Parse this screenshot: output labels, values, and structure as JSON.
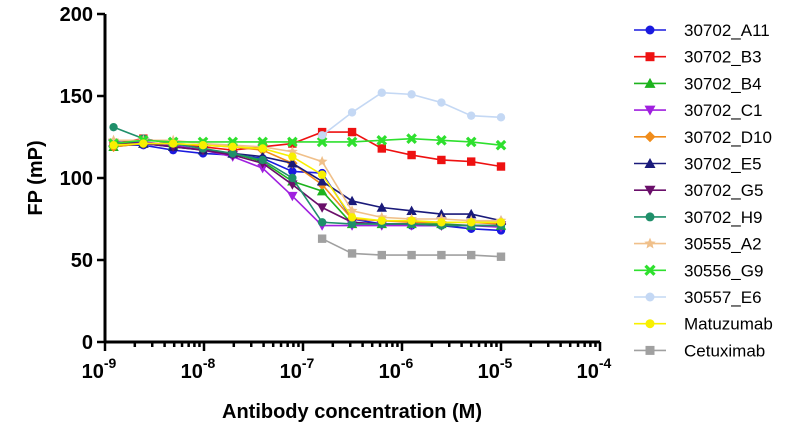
{
  "chart_data": {
    "type": "line",
    "xscale": "log",
    "xlabel": "Antibody concentration (M)",
    "ylabel": "FP (mP)",
    "xlim": [
      1e-09,
      0.0001
    ],
    "ylim": [
      0,
      200
    ],
    "yticks": [
      0,
      50,
      100,
      150,
      200
    ],
    "xticks": [
      {
        "value": 1e-09,
        "base": "10",
        "exp": "-9"
      },
      {
        "value": 1e-08,
        "base": "10",
        "exp": "-8"
      },
      {
        "value": 1e-07,
        "base": "10",
        "exp": "-7"
      },
      {
        "value": 1e-06,
        "base": "10",
        "exp": "-6"
      },
      {
        "value": 1e-05,
        "base": "10",
        "exp": "-5"
      },
      {
        "value": 0.0001,
        "base": "10",
        "exp": "-4"
      }
    ],
    "legend_position": "right",
    "series": [
      {
        "name": "30702_A11",
        "color": "#1a1adf",
        "marker": "circle",
        "x": [
          1.22e-09,
          2.44e-09,
          4.88e-09,
          9.77e-09,
          1.95e-08,
          3.91e-08,
          7.81e-08,
          1.56e-07,
          3.13e-07,
          6.25e-07,
          1.25e-06,
          2.5e-06,
          5e-06,
          1e-05
        ],
        "y": [
          120,
          120,
          117,
          115,
          114,
          112,
          104,
          103,
          75,
          72,
          71,
          71,
          69,
          68
        ]
      },
      {
        "name": "30702_B3",
        "color": "#ee1111",
        "marker": "square",
        "x": [
          1.22e-09,
          2.44e-09,
          4.88e-09,
          9.77e-09,
          1.95e-08,
          3.91e-08,
          7.81e-08,
          1.56e-07,
          3.13e-07,
          6.25e-07,
          1.25e-06,
          2.5e-06,
          5e-06,
          1e-05
        ],
        "y": [
          121,
          124,
          121,
          119,
          117,
          119,
          121,
          128,
          128,
          118,
          114,
          111,
          110,
          107
        ]
      },
      {
        "name": "30702_B4",
        "color": "#1db31d",
        "marker": "triangle-up",
        "x": [
          1.22e-09,
          2.44e-09,
          4.88e-09,
          9.77e-09,
          1.95e-08,
          3.91e-08,
          7.81e-08,
          1.56e-07,
          3.13e-07,
          6.25e-07,
          1.25e-06,
          2.5e-06,
          5e-06,
          1e-05
        ],
        "y": [
          119,
          121,
          120,
          117,
          115,
          110,
          98,
          92,
          72,
          72,
          72,
          72,
          71,
          71
        ]
      },
      {
        "name": "30702_C1",
        "color": "#a020df",
        "marker": "triangle-down",
        "x": [
          1.22e-09,
          2.44e-09,
          4.88e-09,
          9.77e-09,
          1.95e-08,
          3.91e-08,
          7.81e-08,
          1.56e-07,
          3.13e-07,
          6.25e-07,
          1.25e-06,
          2.5e-06,
          5e-06,
          1e-05
        ],
        "y": [
          121,
          122,
          120,
          117,
          113,
          106,
          89,
          71,
          71,
          71,
          71,
          71,
          71,
          70
        ]
      },
      {
        "name": "30702_D10",
        "color": "#f08c1a",
        "marker": "diamond",
        "x": [
          1.22e-09,
          2.44e-09,
          4.88e-09,
          9.77e-09,
          1.95e-08,
          3.91e-08,
          7.81e-08,
          1.56e-07,
          3.13e-07,
          6.25e-07,
          1.25e-06,
          2.5e-06,
          5e-06,
          1e-05
        ],
        "y": [
          119,
          121,
          121,
          120,
          119,
          117,
          109,
          96,
          75,
          74,
          73,
          73,
          73,
          72
        ]
      },
      {
        "name": "30702_E5",
        "color": "#1a1a7a",
        "marker": "triangle-up",
        "x": [
          1.22e-09,
          2.44e-09,
          4.88e-09,
          9.77e-09,
          1.95e-08,
          3.91e-08,
          7.81e-08,
          1.56e-07,
          3.13e-07,
          6.25e-07,
          1.25e-06,
          2.5e-06,
          5e-06,
          1e-05
        ],
        "y": [
          122,
          121,
          119,
          117,
          115,
          113,
          109,
          98,
          86,
          82,
          80,
          78,
          78,
          74
        ]
      },
      {
        "name": "30702_G5",
        "color": "#6a0f6a",
        "marker": "triangle-down",
        "x": [
          1.22e-09,
          2.44e-09,
          4.88e-09,
          9.77e-09,
          1.95e-08,
          3.91e-08,
          7.81e-08,
          1.56e-07,
          3.13e-07,
          6.25e-07,
          1.25e-06,
          2.5e-06,
          5e-06,
          1e-05
        ],
        "y": [
          121,
          121,
          119,
          117,
          114,
          109,
          96,
          82,
          73,
          72,
          72,
          71,
          71,
          71
        ]
      },
      {
        "name": "30702_H9",
        "color": "#1f8f6a",
        "marker": "circle",
        "x": [
          1.22e-09,
          2.44e-09,
          4.88e-09,
          9.77e-09,
          1.95e-08,
          3.91e-08,
          7.81e-08,
          1.56e-07,
          3.13e-07,
          6.25e-07,
          1.25e-06,
          2.5e-06,
          5e-06,
          1e-05
        ],
        "y": [
          131,
          124,
          121,
          118,
          115,
          111,
          100,
          73,
          72,
          72,
          72,
          71,
          71,
          71
        ]
      },
      {
        "name": "30555_A2",
        "color": "#f0c08a",
        "marker": "star",
        "x": [
          1.22e-09,
          2.44e-09,
          4.88e-09,
          9.77e-09,
          1.95e-08,
          3.91e-08,
          7.81e-08,
          1.56e-07,
          3.13e-07,
          6.25e-07,
          1.25e-06,
          2.5e-06,
          5e-06,
          1e-05
        ],
        "y": [
          123,
          123,
          123,
          121,
          120,
          119,
          116,
          110,
          80,
          76,
          75,
          75,
          74,
          74
        ]
      },
      {
        "name": "30556_G9",
        "color": "#2ee02e",
        "marker": "x",
        "x": [
          1.22e-09,
          2.44e-09,
          4.88e-09,
          9.77e-09,
          1.95e-08,
          3.91e-08,
          7.81e-08,
          1.56e-07,
          3.13e-07,
          6.25e-07,
          1.25e-06,
          2.5e-06,
          5e-06,
          1e-05
        ],
        "y": [
          121,
          123,
          122,
          122,
          122,
          122,
          122,
          122,
          122,
          123,
          124,
          123,
          122,
          120
        ]
      },
      {
        "name": "30557_E6",
        "color": "#c4d8f4",
        "marker": "circle",
        "x": [
          1.56e-07,
          3.13e-07,
          6.25e-07,
          1.25e-06,
          2.5e-06,
          5e-06,
          1e-05
        ],
        "y": [
          126,
          140,
          152,
          151,
          146,
          138,
          137
        ]
      },
      {
        "name": "Matuzumab",
        "color": "#f8f000",
        "marker": "circle",
        "x": [
          1.22e-09,
          2.44e-09,
          4.88e-09,
          9.77e-09,
          1.95e-08,
          3.91e-08,
          7.81e-08,
          1.56e-07,
          3.13e-07,
          6.25e-07,
          1.25e-06,
          2.5e-06,
          5e-06,
          1e-05
        ],
        "y": [
          120,
          121,
          121,
          120,
          119,
          118,
          113,
          102,
          76,
          74,
          74,
          73,
          73,
          73
        ]
      },
      {
        "name": "Cetuximab",
        "color": "#a0a0a0",
        "marker": "square",
        "x": [
          1.56e-07,
          3.13e-07,
          6.25e-07,
          1.25e-06,
          2.5e-06,
          5e-06,
          1e-05
        ],
        "y": [
          63,
          54,
          53,
          53,
          53,
          53,
          52
        ]
      }
    ]
  }
}
